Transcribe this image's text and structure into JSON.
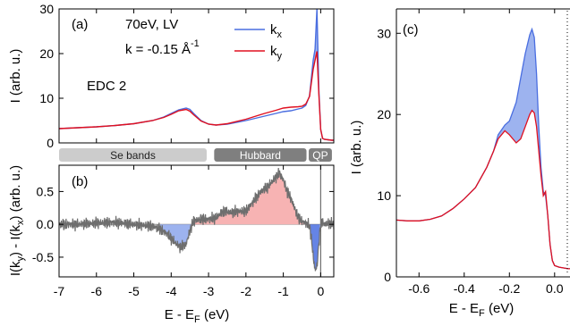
{
  "colors": {
    "kx": "#4a6ee0",
    "ky": "#e01020",
    "kx_fill": "#9db3ef",
    "ky_fill": "#f7b3b3",
    "noise": "#6e6e6e",
    "band_light": "#cccccc",
    "band_dark": "#7f7f7f"
  },
  "panel_a": {
    "label": "(a)",
    "annotation1": "70eV, LV",
    "annotation2_main": "k = -0.15 Å",
    "annotation2_sup": "-1",
    "annotation3": "EDC 2",
    "ylabel": "I (arb. u.)",
    "legend": [
      {
        "name": "k",
        "sub": "x",
        "key": "kx"
      },
      {
        "name": "k",
        "sub": "y",
        "key": "ky"
      }
    ]
  },
  "bands": [
    {
      "label": "Se bands",
      "from": -7,
      "to": -3.05,
      "style": "light"
    },
    {
      "label": "Hubbard",
      "from": -2.85,
      "to": -0.38,
      "style": "dark"
    },
    {
      "label": "QP",
      "from": -0.32,
      "to": 0.3,
      "style": "dark"
    }
  ],
  "panel_b": {
    "label": "(b)",
    "ylabel": "I(k_y) - I(k_x) (arb. u.)",
    "xlabel": "E - E_F (eV)"
  },
  "panel_c": {
    "label": "(c)",
    "ylabel": "I (arb. u.)",
    "xlabel": "E - E_F (eV)"
  },
  "chart_data": [
    {
      "type": "line",
      "panel": "(a)",
      "xlim": [
        -7,
        0.35
      ],
      "ylim": [
        0,
        30
      ],
      "yticks": [
        0,
        10,
        20,
        30
      ],
      "series": [
        {
          "name": "k_x",
          "x": [
            -7,
            -6.5,
            -6,
            -5.5,
            -5,
            -4.5,
            -4.2,
            -4.0,
            -3.8,
            -3.6,
            -3.5,
            -3.4,
            -3.2,
            -3.0,
            -2.8,
            -2.5,
            -2.0,
            -1.5,
            -1.2,
            -1.0,
            -0.8,
            -0.6,
            -0.5,
            -0.4,
            -0.3,
            -0.2,
            -0.15,
            -0.1,
            -0.05,
            0.0,
            0.05,
            0.1,
            0.2,
            0.3,
            0.35
          ],
          "y": [
            3.2,
            3.4,
            3.6,
            3.9,
            4.3,
            5.0,
            5.8,
            6.6,
            7.4,
            7.8,
            7.5,
            6.6,
            5.0,
            4.2,
            4.0,
            4.2,
            5.0,
            6.0,
            6.6,
            7.0,
            7.2,
            7.6,
            7.8,
            8.4,
            10.5,
            18.5,
            21.0,
            30.0,
            12.0,
            3.0,
            1.0,
            0.8,
            0.7,
            0.6,
            0.6
          ]
        },
        {
          "name": "k_y",
          "x": [
            -7,
            -6.5,
            -6,
            -5.5,
            -5,
            -4.5,
            -4.2,
            -4.0,
            -3.8,
            -3.6,
            -3.5,
            -3.4,
            -3.2,
            -3.0,
            -2.8,
            -2.5,
            -2.0,
            -1.5,
            -1.2,
            -1.0,
            -0.8,
            -0.6,
            -0.5,
            -0.4,
            -0.3,
            -0.2,
            -0.15,
            -0.1,
            -0.05,
            0.0,
            0.05,
            0.1,
            0.2,
            0.3,
            0.35
          ],
          "y": [
            3.2,
            3.4,
            3.6,
            3.9,
            4.3,
            5.0,
            5.7,
            6.4,
            7.2,
            7.5,
            7.1,
            6.3,
            4.9,
            4.2,
            4.0,
            4.3,
            5.3,
            6.6,
            7.3,
            7.8,
            8.0,
            8.1,
            8.2,
            8.7,
            10.4,
            16.5,
            18.5,
            20.5,
            11.0,
            3.0,
            1.0,
            0.8,
            0.7,
            0.6,
            0.6
          ]
        }
      ]
    },
    {
      "type": "line",
      "panel": "(b)",
      "xlim": [
        -7,
        0.35
      ],
      "ylim": [
        -0.8,
        0.9
      ],
      "xticks": [
        -7,
        -6,
        -5,
        -4,
        -3,
        -2,
        -1,
        0
      ],
      "yticks": [
        -0.5,
        0.0,
        0.5
      ],
      "series": [
        {
          "name": "I(k_y) - I(k_x)",
          "x": [
            -7,
            -6.5,
            -6,
            -5.5,
            -5,
            -4.5,
            -4.3,
            -4.1,
            -3.9,
            -3.75,
            -3.6,
            -3.5,
            -3.4,
            -3.2,
            -3.0,
            -2.8,
            -2.6,
            -2.4,
            -2.2,
            -2.0,
            -1.8,
            -1.6,
            -1.4,
            -1.2,
            -1.1,
            -1.0,
            -0.9,
            -0.8,
            -0.7,
            -0.6,
            -0.5,
            -0.4,
            -0.3,
            -0.25,
            -0.2,
            -0.15,
            -0.1,
            -0.05,
            0.0,
            0.05,
            0.1,
            0.2,
            0.35
          ],
          "y": [
            0.0,
            0.0,
            0.02,
            0.03,
            0.0,
            -0.03,
            -0.07,
            -0.15,
            -0.28,
            -0.35,
            -0.3,
            -0.1,
            0.05,
            0.08,
            0.08,
            0.1,
            0.2,
            0.18,
            0.2,
            0.2,
            0.35,
            0.5,
            0.58,
            0.72,
            0.78,
            0.68,
            0.5,
            0.4,
            0.25,
            0.1,
            0.05,
            0.02,
            -0.02,
            -0.2,
            -0.5,
            -0.7,
            -0.65,
            -0.3,
            0.0,
            0.03,
            0.0,
            0.02,
            0.0
          ]
        }
      ]
    },
    {
      "type": "line",
      "panel": "(c)",
      "xlim": [
        -0.7,
        0.08
      ],
      "ylim": [
        0,
        33
      ],
      "xticks": [
        -0.6,
        -0.4,
        -0.2,
        0.0
      ],
      "yticks": [
        0,
        10,
        20,
        30
      ],
      "series": [
        {
          "name": "k_x",
          "x": [
            -0.7,
            -0.65,
            -0.6,
            -0.55,
            -0.5,
            -0.45,
            -0.4,
            -0.35,
            -0.3,
            -0.27,
            -0.25,
            -0.22,
            -0.2,
            -0.17,
            -0.15,
            -0.13,
            -0.11,
            -0.1,
            -0.09,
            -0.08,
            -0.07,
            -0.06,
            -0.05,
            -0.04,
            -0.03,
            -0.02,
            -0.01,
            0.0,
            0.02,
            0.04,
            0.06,
            0.08
          ],
          "y": [
            7.0,
            6.9,
            6.9,
            7.1,
            7.5,
            8.4,
            9.6,
            11.0,
            13.5,
            15.5,
            17.5,
            18.7,
            19.2,
            21.5,
            24.5,
            27.5,
            29.8,
            30.5,
            29.5,
            25.0,
            18.5,
            13.5,
            10.5,
            10.0,
            7.5,
            4.0,
            2.0,
            1.4,
            1.2,
            1.1,
            1.0,
            1.0
          ]
        },
        {
          "name": "k_y",
          "x": [
            -0.7,
            -0.65,
            -0.6,
            -0.55,
            -0.5,
            -0.45,
            -0.4,
            -0.35,
            -0.3,
            -0.27,
            -0.25,
            -0.22,
            -0.2,
            -0.17,
            -0.15,
            -0.13,
            -0.11,
            -0.1,
            -0.09,
            -0.08,
            -0.07,
            -0.06,
            -0.05,
            -0.04,
            -0.03,
            -0.02,
            -0.01,
            0.0,
            0.02,
            0.04,
            0.06,
            0.08
          ],
          "y": [
            7.0,
            6.9,
            6.9,
            7.1,
            7.5,
            8.4,
            9.6,
            11.0,
            13.5,
            15.5,
            17.0,
            18.0,
            17.5,
            16.5,
            17.0,
            18.5,
            20.0,
            20.5,
            20.2,
            18.5,
            15.5,
            12.5,
            10.0,
            10.5,
            7.5,
            4.0,
            2.0,
            1.4,
            1.2,
            1.1,
            1.0,
            1.0
          ]
        }
      ]
    }
  ]
}
